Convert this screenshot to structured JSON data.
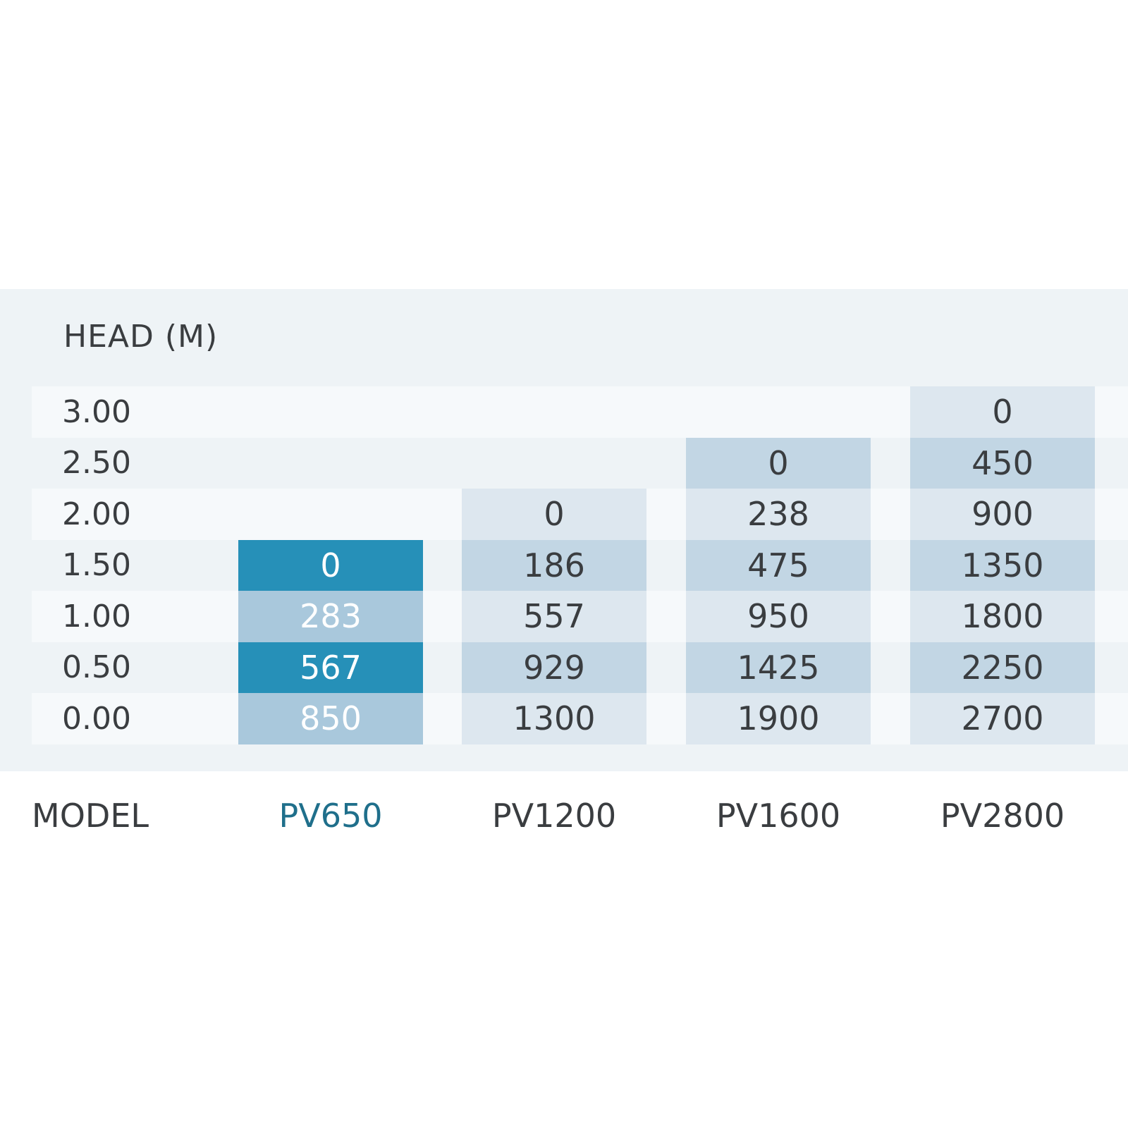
{
  "table": {
    "head_label": "HEAD  (M)",
    "rows": [
      {
        "head": "3.00",
        "cells": [
          null,
          null,
          null,
          0
        ]
      },
      {
        "head": "2.50",
        "cells": [
          null,
          null,
          0,
          450
        ]
      },
      {
        "head": "2.00",
        "cells": [
          null,
          0,
          238,
          900
        ]
      },
      {
        "head": "1.50",
        "cells": [
          0,
          186,
          475,
          1350
        ]
      },
      {
        "head": "1.00",
        "cells": [
          283,
          557,
          950,
          1800
        ]
      },
      {
        "head": "0.50",
        "cells": [
          567,
          929,
          1425,
          2250
        ]
      },
      {
        "head": "0.00",
        "cells": [
          850,
          1300,
          1900,
          2700
        ]
      }
    ],
    "model_label": "MODEL",
    "models": [
      "PV650",
      "PV1200",
      "PV1600",
      "PV2800"
    ]
  }
}
